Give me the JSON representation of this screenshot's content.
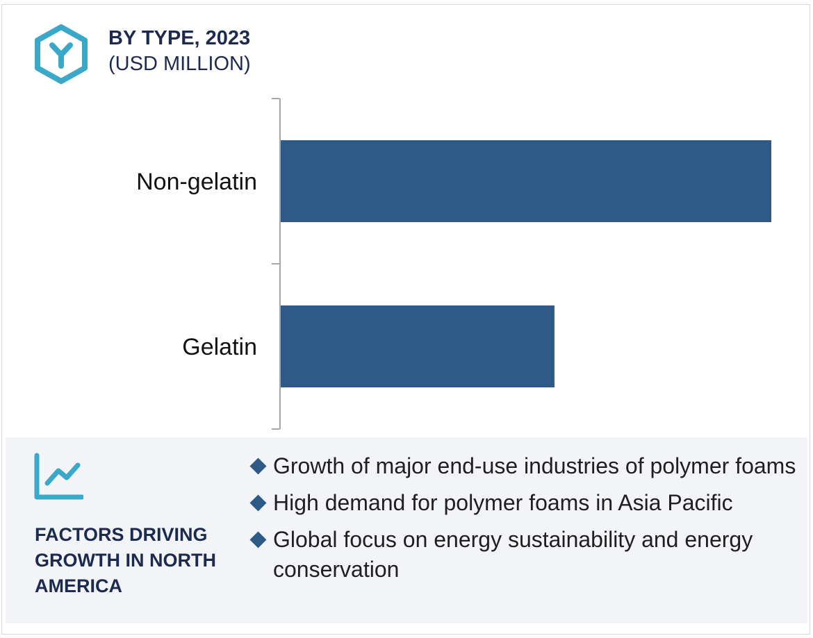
{
  "header": {
    "title": "BY TYPE, 2023",
    "subtitle": "(USD MILLION)",
    "icon": "hexagon-y-icon",
    "icon_color": "#3aa8c9"
  },
  "chart_data": {
    "type": "bar",
    "orientation": "horizontal",
    "categories": [
      "Non-gelatin",
      "Gelatin"
    ],
    "values": [
      1000,
      558
    ],
    "xlim": [
      0,
      1000
    ],
    "grid": false,
    "legend": "none",
    "bar_color": "#2d5a87",
    "axis_color": "#a6a6a6"
  },
  "factors": {
    "icon": "trend-line-icon",
    "icon_color": "#3aa8c9",
    "heading": "FACTORS DRIVING GROWTH IN NORTH AMERICA",
    "items": [
      "Growth of major end-use industries of polymer foams",
      "High demand for polymer foams in Asia Pacific",
      "Global focus on energy sustainability and energy conservation"
    ],
    "bullet_color": "#2d5a87"
  }
}
